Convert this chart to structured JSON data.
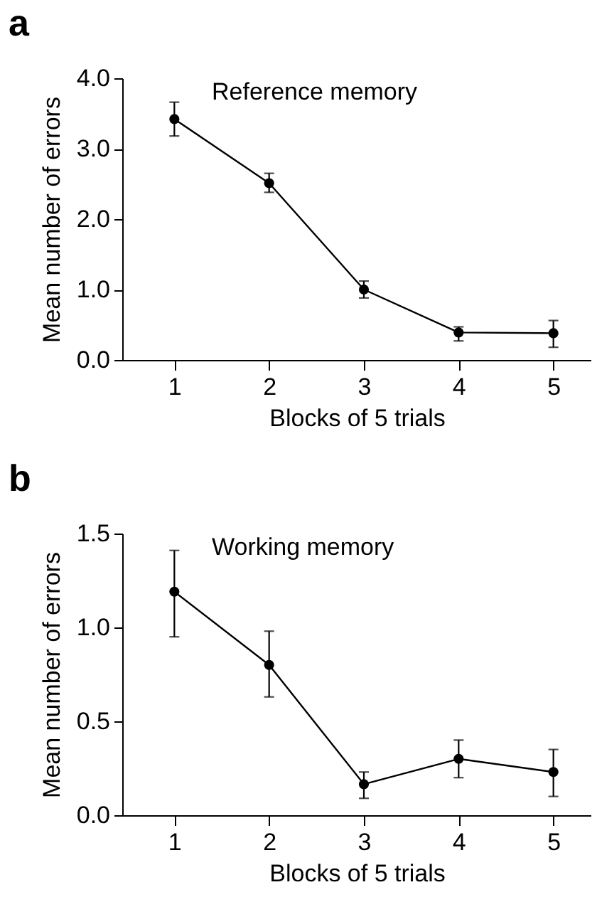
{
  "chart_data": [
    {
      "type": "line",
      "title": "a",
      "annotations": [
        "Reference memory"
      ],
      "xlabel": "Blocks of 5 trials",
      "ylabel": "Mean number of errors",
      "x": [
        1,
        2,
        3,
        4,
        5
      ],
      "series": [
        {
          "color": "#000000",
          "values": [
            3.42,
            2.51,
            1.0,
            0.39,
            0.38
          ],
          "errors": [
            [
              3.18,
              3.66
            ],
            [
              2.38,
              2.65
            ],
            [
              0.88,
              1.12
            ],
            [
              0.27,
              0.47
            ],
            [
              0.18,
              0.56
            ]
          ]
        }
      ],
      "xlim": [
        0.45,
        5.4
      ],
      "xticks": [
        1,
        2,
        3,
        4,
        5
      ],
      "ylim": [
        0,
        4
      ],
      "yticks": [
        {
          "value": 0,
          "label": "0.0"
        },
        {
          "value": 1,
          "label": "1.0"
        },
        {
          "value": 2,
          "label": "2.0"
        },
        {
          "value": 3,
          "label": "3.0"
        },
        {
          "value": 4,
          "label": "4.0"
        }
      ],
      "marker": "circle",
      "line_style": "solid"
    },
    {
      "type": "line",
      "title": "b",
      "annotations": [
        "Working memory"
      ],
      "xlabel": "Blocks of 5 trials",
      "ylabel": "Mean number of errors",
      "x": [
        1,
        2,
        3,
        4,
        5
      ],
      "series": [
        {
          "color": "#000000",
          "values": [
            1.19,
            0.8,
            0.165,
            0.3,
            0.23
          ],
          "errors": [
            [
              0.95,
              1.41
            ],
            [
              0.63,
              0.98
            ],
            [
              0.09,
              0.23
            ],
            [
              0.2,
              0.4
            ],
            [
              0.1,
              0.35
            ]
          ]
        }
      ],
      "xlim": [
        0.45,
        5.4
      ],
      "xticks": [
        1,
        2,
        3,
        4,
        5
      ],
      "ylim": [
        0,
        1.5
      ],
      "yticks": [
        {
          "value": 0,
          "label": "0.0"
        },
        {
          "value": 0.5,
          "label": "0.5"
        },
        {
          "value": 1,
          "label": "1.0"
        },
        {
          "value": 1.5,
          "label": "1.5"
        }
      ],
      "marker": "circle",
      "line_style": "solid"
    }
  ]
}
